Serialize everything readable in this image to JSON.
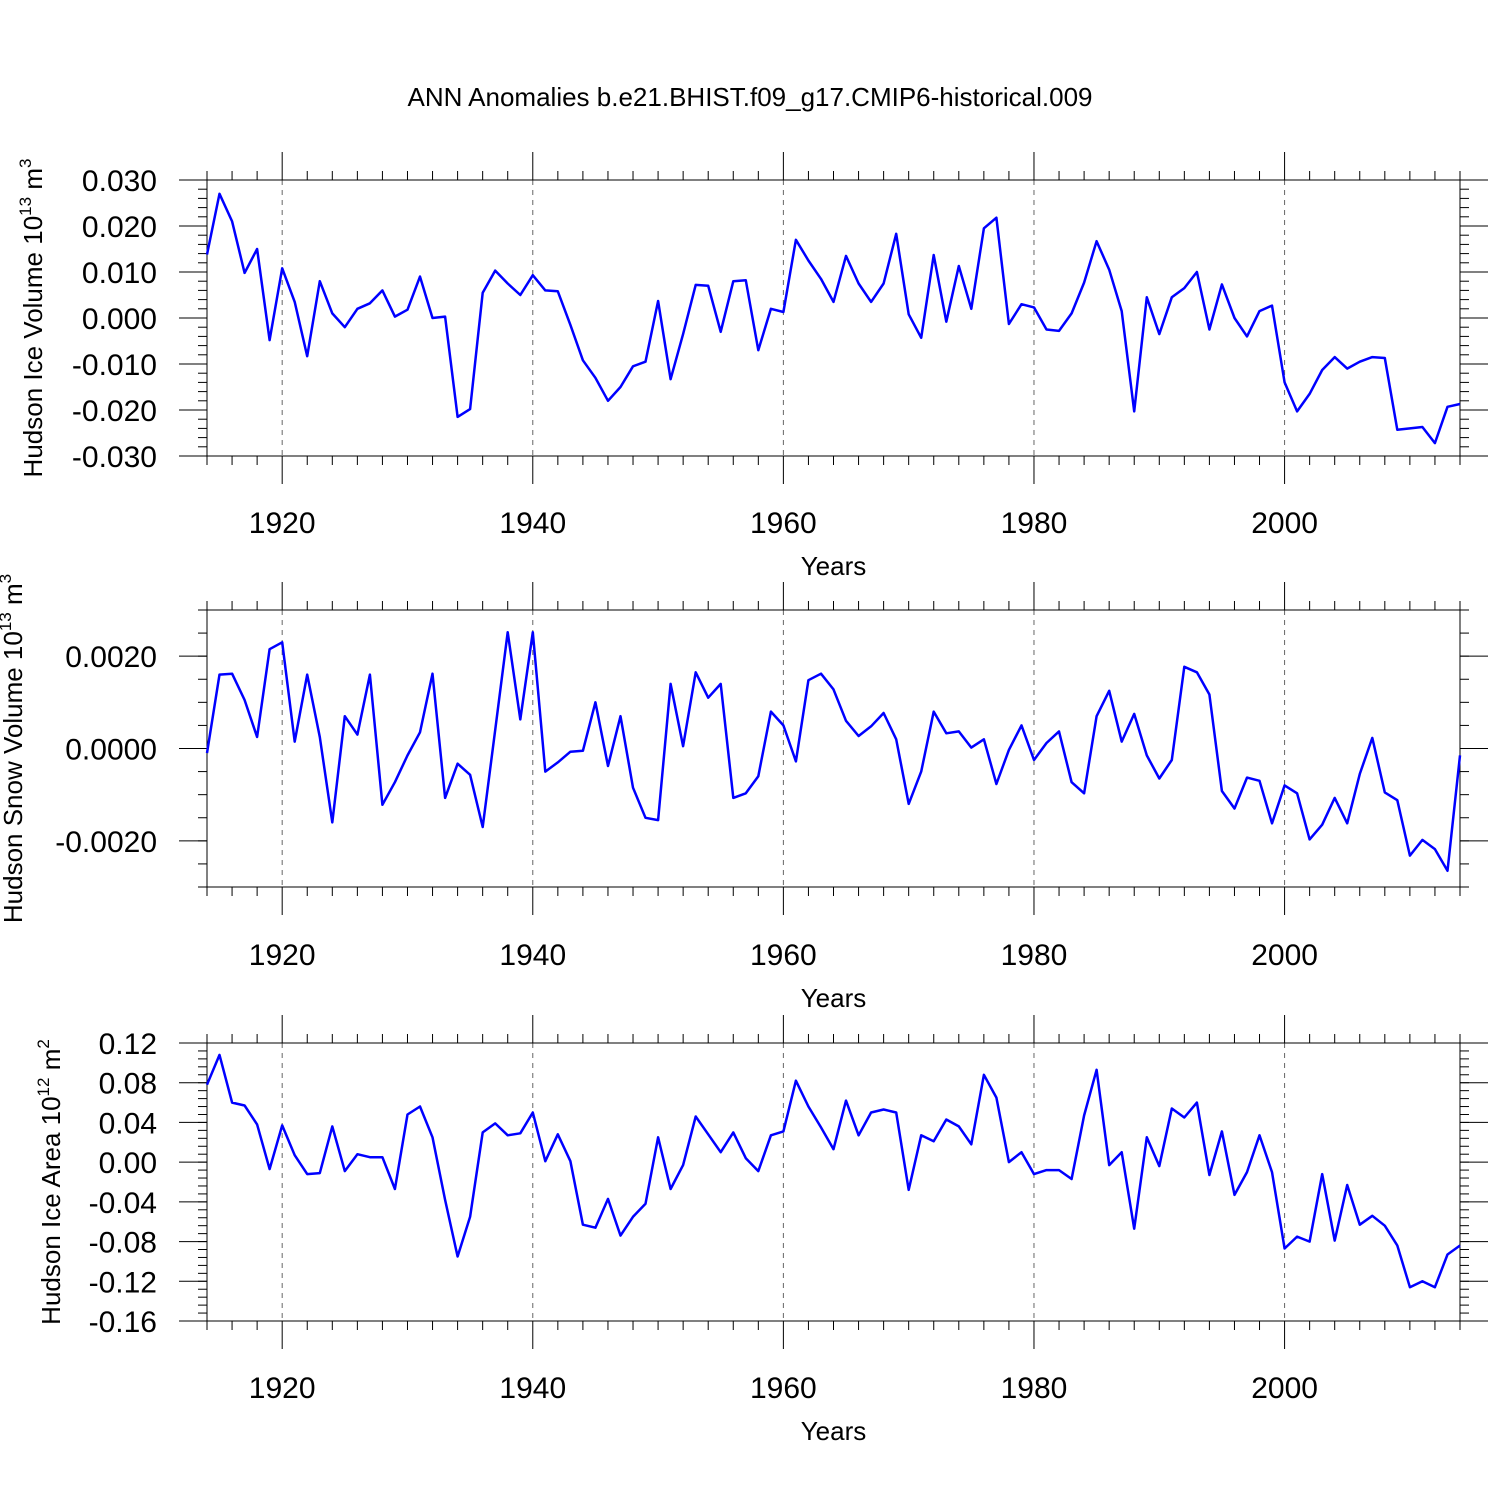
{
  "figure": {
    "title": "ANN Anomalies b.e21.BHIST.f09_g17.CMIP6-historical.009"
  },
  "chart_data": [
    {
      "type": "line",
      "name": "Hudson Ice Volume",
      "ylabel_main": "Hudson Ice Volume 10",
      "ylabel_exp": "13",
      "ylabel_unit": " m",
      "ylabel_unit_exp": "3",
      "xlabel": "Years",
      "xlim": [
        1914,
        2014
      ],
      "ylim": [
        -0.03,
        0.03
      ],
      "x_major_ticks": [
        1920,
        1940,
        1960,
        1980,
        2000
      ],
      "x_tick_labels": [
        "1920",
        "1940",
        "1960",
        "1980",
        "2000"
      ],
      "y_major_ticks": [
        -0.03,
        -0.02,
        -0.01,
        0.0,
        0.01,
        0.02,
        0.03
      ],
      "y_tick_labels": [
        "-0.030",
        "-0.020",
        "-0.010",
        "0.000",
        "0.010",
        "0.020",
        "0.030"
      ],
      "y_minor_step": 0.002,
      "x_grid": "dashed at major ticks",
      "color": "#0000ff",
      "x_start": 1914,
      "values": [
        0.0138,
        0.027,
        0.021,
        0.0098,
        0.015,
        -0.0048,
        0.0108,
        0.0035,
        -0.0083,
        0.008,
        0.001,
        -0.002,
        0.002,
        0.0032,
        0.006,
        0.0003,
        0.0018,
        0.009,
        0.0,
        0.0003,
        -0.0215,
        -0.0198,
        0.0055,
        0.0103,
        0.0075,
        0.005,
        0.0093,
        0.006,
        0.0058,
        -0.0015,
        -0.0092,
        -0.013,
        -0.018,
        -0.015,
        -0.0105,
        -0.0095,
        0.0037,
        -0.0133,
        -0.0035,
        0.0072,
        0.007,
        -0.003,
        0.008,
        0.0082,
        -0.007,
        0.002,
        0.0013,
        0.017,
        0.0125,
        0.0085,
        0.0035,
        0.0135,
        0.0075,
        0.0035,
        0.0075,
        0.0183,
        0.0008,
        -0.0043,
        0.0137,
        -0.0008,
        0.0113,
        0.002,
        0.0195,
        0.0218,
        -0.0013,
        0.003,
        0.0023,
        -0.0025,
        -0.0028,
        0.001,
        0.0077,
        0.0167,
        0.0105,
        0.0015,
        -0.0203,
        0.0045,
        -0.0035,
        0.0045,
        0.0065,
        0.01,
        -0.0025,
        0.0073,
        0.0,
        -0.004,
        0.0015,
        0.0027,
        -0.014,
        -0.0203,
        -0.0165,
        -0.0113,
        -0.0085,
        -0.011,
        -0.0095,
        -0.0085,
        -0.0087,
        -0.0243,
        -0.024,
        -0.0237,
        -0.0272,
        -0.0193,
        -0.0187
      ]
    },
    {
      "type": "line",
      "name": "Hudson Snow Volume",
      "ylabel_main": "Hudson Snow Volume 10",
      "ylabel_exp": "13",
      "ylabel_unit": " m",
      "ylabel_unit_exp": "3",
      "xlabel": "Years",
      "xlim": [
        1914,
        2014
      ],
      "ylim": [
        -0.003,
        0.003
      ],
      "x_major_ticks": [
        1920,
        1940,
        1960,
        1980,
        2000
      ],
      "x_tick_labels": [
        "1920",
        "1940",
        "1960",
        "1980",
        "2000"
      ],
      "y_major_ticks": [
        -0.002,
        0.0,
        0.002
      ],
      "y_tick_labels": [
        "-0.0020",
        "0.0000",
        "0.0020"
      ],
      "y_minor_step": 0.0005,
      "x_grid": "dashed at major ticks",
      "color": "#0000ff",
      "x_start": 1914,
      "values": [
        -0.0001,
        0.0016,
        0.00162,
        0.00105,
        0.00025,
        0.00215,
        0.0023,
        0.00015,
        0.0016,
        0.00025,
        -0.0016,
        0.0007,
        0.0003,
        0.0016,
        -0.00122,
        -0.00073,
        -0.00015,
        0.00035,
        0.00162,
        -0.00107,
        -0.00033,
        -0.00057,
        -0.0017,
        0.0004,
        0.00252,
        0.00063,
        0.00252,
        -0.0005,
        -0.0003,
        -7e-05,
        -5e-05,
        0.001,
        -0.00038,
        0.0007,
        -0.00085,
        -0.0015,
        -0.00155,
        0.0014,
        5e-05,
        0.00165,
        0.0011,
        0.0014,
        -0.00107,
        -0.00097,
        -0.0006,
        0.0008,
        0.0005,
        -0.00028,
        0.00148,
        0.00162,
        0.00128,
        0.0006,
        0.00027,
        0.00048,
        0.00077,
        0.0002,
        -0.0012,
        -0.0005,
        0.0008,
        0.00033,
        0.00037,
        2e-05,
        0.0002,
        -0.00077,
        -3e-05,
        0.0005,
        -0.00025,
        0.00012,
        0.00037,
        -0.00073,
        -0.00097,
        0.0007,
        0.00125,
        0.00015,
        0.00075,
        -0.00015,
        -0.00065,
        -0.00025,
        0.00177,
        0.00165,
        0.00117,
        -0.00092,
        -0.0013,
        -0.00063,
        -0.0007,
        -0.00162,
        -0.0008,
        -0.00097,
        -0.00197,
        -0.00165,
        -0.00107,
        -0.00162,
        -0.00055,
        0.00023,
        -0.00095,
        -0.00112,
        -0.00232,
        -0.00198,
        -0.00218,
        -0.00265,
        -0.00015
      ]
    },
    {
      "type": "line",
      "name": "Hudson Ice Area",
      "ylabel_main": "Hudson Ice Area 10",
      "ylabel_exp": "12",
      "ylabel_unit": " m",
      "ylabel_unit_exp": "2",
      "xlabel": "Years",
      "xlim": [
        1914,
        2014
      ],
      "ylim": [
        -0.16,
        0.12
      ],
      "x_major_ticks": [
        1920,
        1940,
        1960,
        1980,
        2000
      ],
      "x_tick_labels": [
        "1920",
        "1940",
        "1960",
        "1980",
        "2000"
      ],
      "y_major_ticks": [
        -0.16,
        -0.12,
        -0.08,
        -0.04,
        0.0,
        0.04,
        0.08,
        0.12
      ],
      "y_tick_labels": [
        "-0.16",
        "-0.12",
        "-0.08",
        "-0.04",
        "0.00",
        "0.04",
        "0.08",
        "0.12"
      ],
      "y_minor_step": 0.008,
      "x_grid": "dashed at major ticks",
      "color": "#0000ff",
      "x_start": 1914,
      "values": [
        0.078,
        0.108,
        0.06,
        0.057,
        0.038,
        -0.007,
        0.037,
        0.007,
        -0.012,
        -0.011,
        0.036,
        -0.009,
        0.008,
        0.005,
        0.005,
        -0.027,
        0.048,
        0.056,
        0.025,
        -0.038,
        -0.095,
        -0.055,
        0.03,
        0.039,
        0.027,
        0.029,
        0.05,
        0.001,
        0.028,
        0.001,
        -0.063,
        -0.066,
        -0.037,
        -0.074,
        -0.055,
        -0.042,
        0.025,
        -0.027,
        -0.003,
        0.046,
        0.028,
        0.01,
        0.03,
        0.004,
        -0.009,
        0.027,
        0.031,
        0.082,
        0.056,
        0.035,
        0.013,
        0.062,
        0.027,
        0.05,
        0.053,
        0.05,
        -0.028,
        0.027,
        0.021,
        0.043,
        0.036,
        0.018,
        0.088,
        0.065,
        0.0,
        0.01,
        -0.012,
        -0.008,
        -0.008,
        -0.017,
        0.047,
        0.093,
        -0.003,
        0.01,
        -0.067,
        0.025,
        -0.004,
        0.054,
        0.045,
        0.06,
        -0.013,
        0.031,
        -0.033,
        -0.01,
        0.027,
        -0.01,
        -0.087,
        -0.075,
        -0.08,
        -0.012,
        -0.079,
        -0.023,
        -0.063,
        -0.054,
        -0.064,
        -0.084,
        -0.126,
        -0.12,
        -0.126,
        -0.093,
        -0.084
      ]
    }
  ]
}
